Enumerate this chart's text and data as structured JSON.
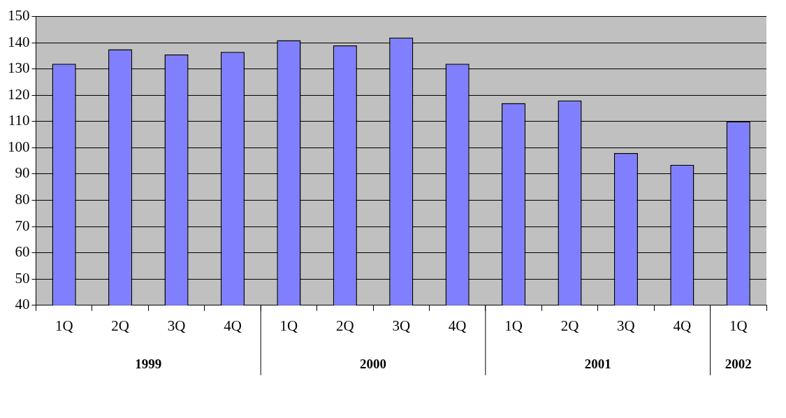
{
  "chart_data": {
    "type": "bar",
    "categories": [
      "1Q",
      "2Q",
      "3Q",
      "4Q",
      "1Q",
      "2Q",
      "3Q",
      "4Q",
      "1Q",
      "2Q",
      "3Q",
      "4Q",
      "1Q"
    ],
    "values": [
      132,
      137.5,
      135.5,
      136.5,
      141,
      139,
      142,
      132,
      117,
      118,
      98,
      93.5,
      110
    ],
    "color": "#8080ff",
    "ylim": [
      40,
      150
    ],
    "yticks": [
      40,
      50,
      60,
      70,
      80,
      90,
      100,
      110,
      120,
      130,
      140,
      150
    ],
    "grid": "y",
    "annotations": [
      "1999",
      "2000",
      "2001",
      "2002"
    ]
  }
}
